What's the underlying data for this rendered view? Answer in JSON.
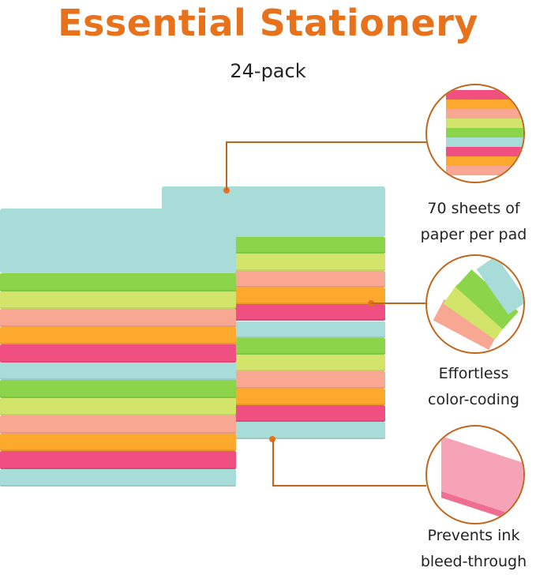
{
  "header": {
    "title": "Essential Stationery",
    "subtitle": "24-pack"
  },
  "features": [
    {
      "line1": "70 sheets of",
      "line2": "paper per pad",
      "icon": "stack-closeup-image"
    },
    {
      "line1": "Effortless",
      "line2": "color-coding",
      "icon": "fanned-pads-image"
    },
    {
      "line1": "Prevents ink",
      "line2": "bleed-through",
      "icon": "pink-pad-image"
    }
  ],
  "colors": {
    "accent": "#e8721c",
    "blue": "#a8dcd8",
    "green": "#8cd44a",
    "lime": "#d2e46a",
    "peach": "#f8a792",
    "orange": "#fca92e",
    "pink": "#f04f82"
  }
}
